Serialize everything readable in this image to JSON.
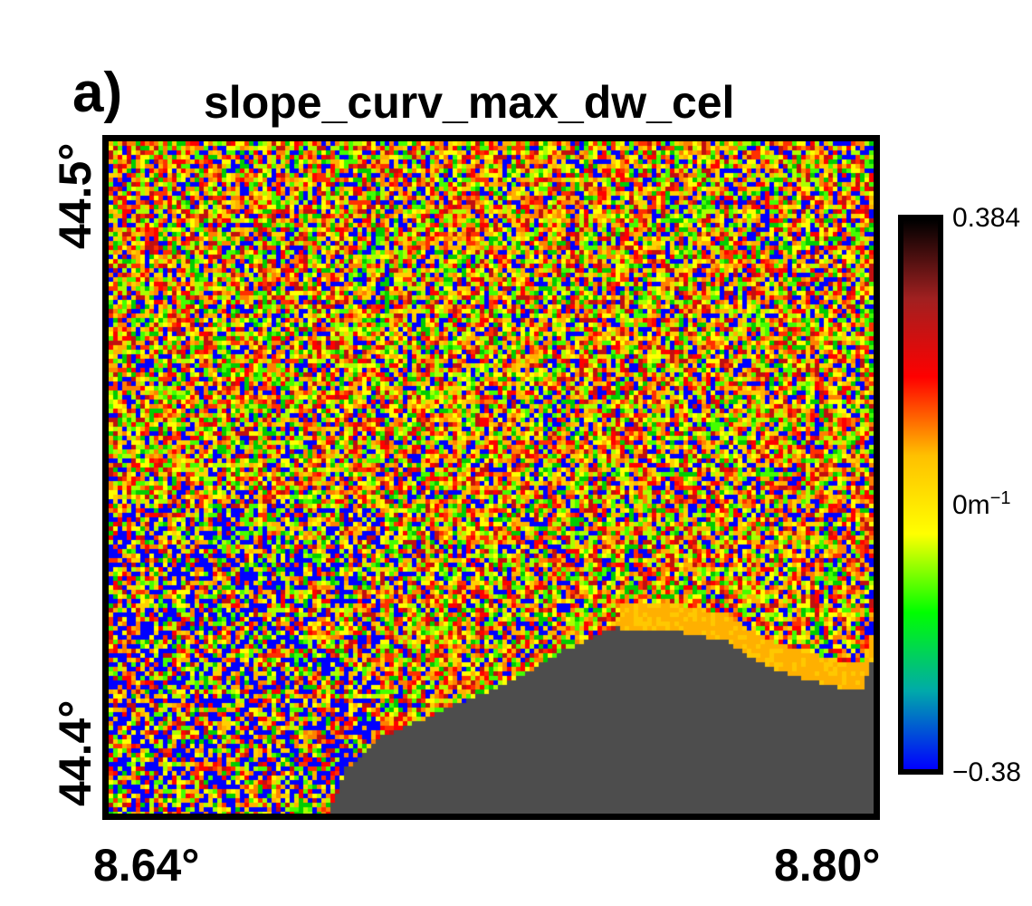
{
  "panel_label": "a)",
  "title": "slope_curv_max_dw_cel",
  "axes": {
    "lat_ticks": [
      "44.5°",
      "44.4°"
    ],
    "lon_ticks": [
      "8.64°",
      "8.80°"
    ]
  },
  "colorbar": {
    "max_label": "0.384",
    "mid_label": "0m",
    "mid_unit_sup": "−1",
    "min_label": "−0.38",
    "colors": [
      "#0000ff",
      "#00aaaa",
      "#00ff00",
      "#ffff00",
      "#ffc000",
      "#ff0000",
      "#a02020",
      "#000000"
    ]
  },
  "map": {
    "sea_color": "#4d4d4d",
    "coastline_color": "#ffb000"
  }
}
